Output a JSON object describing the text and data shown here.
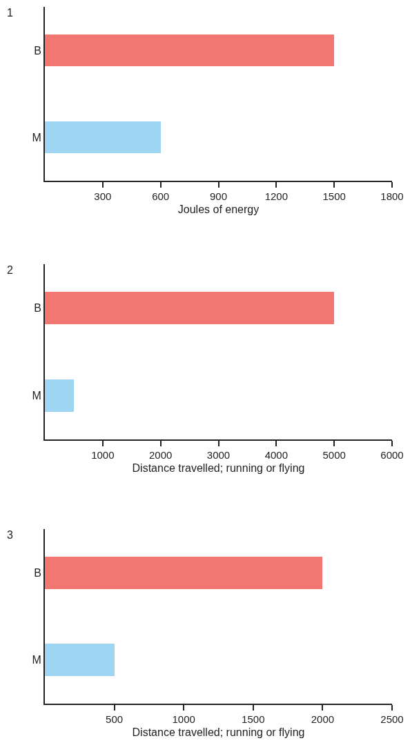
{
  "chart_data": [
    {
      "type": "bar",
      "orientation": "horizontal",
      "title": "1",
      "xlabel": "Joules of energy",
      "categories": [
        "B",
        "M"
      ],
      "values": [
        1500,
        600
      ],
      "colors": [
        "#f27672",
        "#9dd5f2"
      ],
      "xlim": [
        0,
        1800
      ],
      "xticks": [
        300,
        600,
        900,
        1200,
        1500,
        1800
      ]
    },
    {
      "type": "bar",
      "orientation": "horizontal",
      "title": "2",
      "xlabel": "Distance travelled; running or flying",
      "categories": [
        "B",
        "M"
      ],
      "values": [
        5000,
        500
      ],
      "colors": [
        "#f27672",
        "#9dd5f2"
      ],
      "xlim": [
        0,
        6000
      ],
      "xticks": [
        1000,
        2000,
        3000,
        4000,
        5000,
        6000
      ]
    },
    {
      "type": "bar",
      "orientation": "horizontal",
      "title": "3",
      "xlabel": "Distance travelled; running or flying",
      "categories": [
        "B",
        "M"
      ],
      "values": [
        2000,
        500
      ],
      "colors": [
        "#f27672",
        "#9dd5f2"
      ],
      "xlim": [
        0,
        2500
      ],
      "xticks": [
        500,
        1000,
        1500,
        2000,
        2500
      ]
    }
  ]
}
